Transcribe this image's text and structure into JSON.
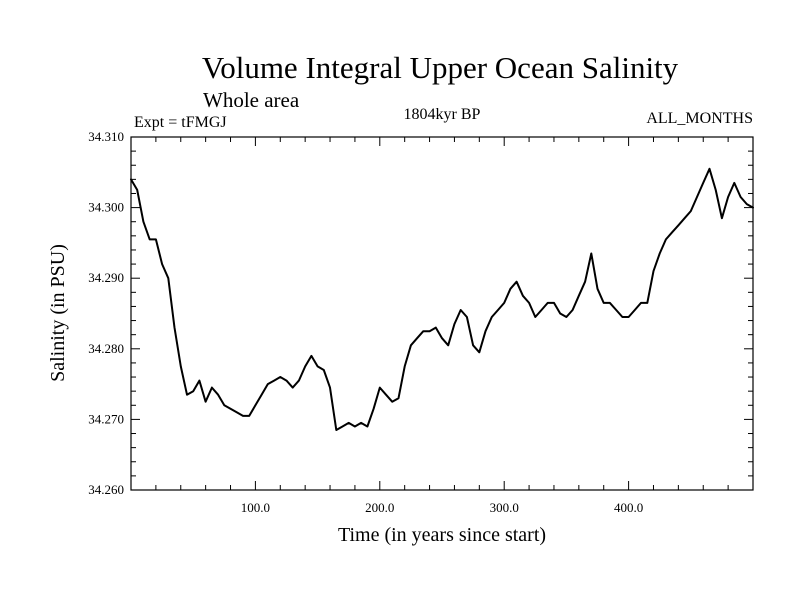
{
  "chart_data": {
    "type": "line",
    "title": "Volume Integral Upper Ocean Salinity",
    "subtitle": "Whole area",
    "experiment_label": "Expt = tFMGJ",
    "period_label": "1804kyr BP",
    "months_label": "ALL_MONTHS",
    "xlabel": "Time (in years since start)",
    "ylabel": "Salinity (in PSU)",
    "xlim": [
      0,
      500
    ],
    "ylim": [
      34.26,
      34.31
    ],
    "x_ticks": [
      100,
      200,
      300,
      400
    ],
    "x_tick_labels": [
      "100.0",
      "200.0",
      "300.0",
      "400.0"
    ],
    "y_ticks": [
      34.26,
      34.27,
      34.28,
      34.29,
      34.3,
      34.31
    ],
    "y_tick_labels": [
      "34.260",
      "34.270",
      "34.280",
      "34.290",
      "34.300",
      "34.310"
    ],
    "grid": false,
    "series": [
      {
        "name": "Salinity",
        "x": [
          0,
          5,
          10,
          15,
          20,
          25,
          30,
          35,
          40,
          45,
          50,
          55,
          60,
          65,
          70,
          75,
          80,
          85,
          90,
          95,
          100,
          105,
          110,
          115,
          120,
          125,
          130,
          135,
          140,
          145,
          150,
          155,
          160,
          165,
          170,
          175,
          180,
          185,
          190,
          195,
          200,
          205,
          210,
          215,
          220,
          225,
          230,
          235,
          240,
          245,
          250,
          255,
          260,
          265,
          270,
          275,
          280,
          285,
          290,
          295,
          300,
          305,
          310,
          315,
          320,
          325,
          330,
          335,
          340,
          345,
          350,
          355,
          360,
          365,
          370,
          375,
          380,
          385,
          390,
          395,
          400,
          405,
          410,
          415,
          420,
          425,
          430,
          435,
          440,
          445,
          450,
          455,
          460,
          465,
          470,
          475,
          480,
          485,
          490,
          495,
          500
        ],
        "values": [
          34.304,
          34.3025,
          34.298,
          34.2955,
          34.2955,
          34.292,
          34.29,
          34.283,
          34.2775,
          34.2735,
          34.274,
          34.2755,
          34.2725,
          34.2745,
          34.2735,
          34.272,
          34.2715,
          34.271,
          34.2705,
          34.2705,
          34.272,
          34.2735,
          34.275,
          34.2755,
          34.276,
          34.2755,
          34.2745,
          34.2755,
          34.2775,
          34.279,
          34.2775,
          34.277,
          34.2745,
          34.2685,
          34.269,
          34.2695,
          34.269,
          34.2695,
          34.269,
          34.2715,
          34.2745,
          34.2735,
          34.2725,
          34.273,
          34.2775,
          34.2805,
          34.2815,
          34.2825,
          34.2825,
          34.283,
          34.2815,
          34.2805,
          34.2835,
          34.2855,
          34.2845,
          34.2805,
          34.2795,
          34.2825,
          34.2845,
          34.2855,
          34.2865,
          34.2885,
          34.2895,
          34.2875,
          34.2865,
          34.2845,
          34.2855,
          34.2865,
          34.2865,
          34.285,
          34.2845,
          34.2855,
          34.2875,
          34.2895,
          34.2935,
          34.2885,
          34.2865,
          34.2865,
          34.2855,
          34.2845,
          34.2845,
          34.2855,
          34.2865,
          34.2865,
          34.291,
          34.2935,
          34.2955,
          34.2965,
          34.2975,
          34.2985,
          34.2995,
          34.3015,
          34.3035,
          34.3055,
          34.3025,
          34.2985,
          34.3015,
          34.3035,
          34.3015,
          34.3005,
          34.3
        ]
      }
    ]
  }
}
